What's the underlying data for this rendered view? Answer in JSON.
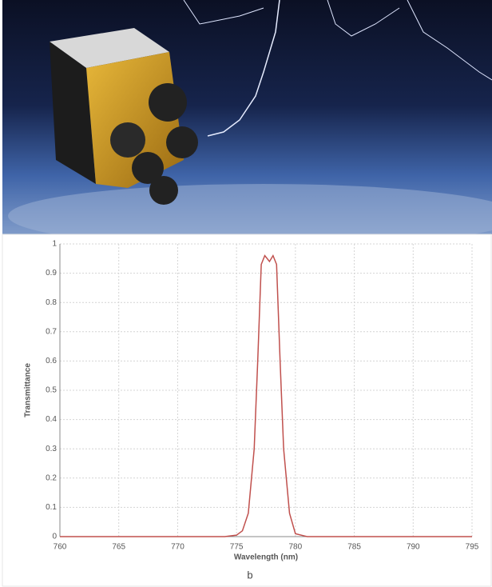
{
  "chart_data": {
    "type": "line",
    "x_label": "Wavelength (nm)",
    "y_label": "Transmittance",
    "annotation": "b",
    "x": [
      760,
      774,
      775,
      775.5,
      776,
      776.5,
      776.8,
      777.1,
      777.4,
      777.8,
      778.1,
      778.4,
      778.7,
      779,
      779.5,
      780,
      781,
      795
    ],
    "series": [
      {
        "color": "#c0504d",
        "values": [
          0,
          0,
          0.005,
          0.02,
          0.08,
          0.3,
          0.6,
          0.93,
          0.96,
          0.94,
          0.96,
          0.93,
          0.6,
          0.3,
          0.08,
          0.01,
          0,
          0
        ]
      }
    ],
    "xlim": [
      760,
      795
    ],
    "xticks": [
      760,
      765,
      770,
      775,
      780,
      785,
      790,
      795
    ],
    "ylim": [
      0,
      1
    ],
    "yticks": [
      0,
      0.1,
      0.2,
      0.3,
      0.4,
      0.5,
      0.6,
      0.7,
      0.8,
      0.9,
      1
    ],
    "grid": true
  }
}
